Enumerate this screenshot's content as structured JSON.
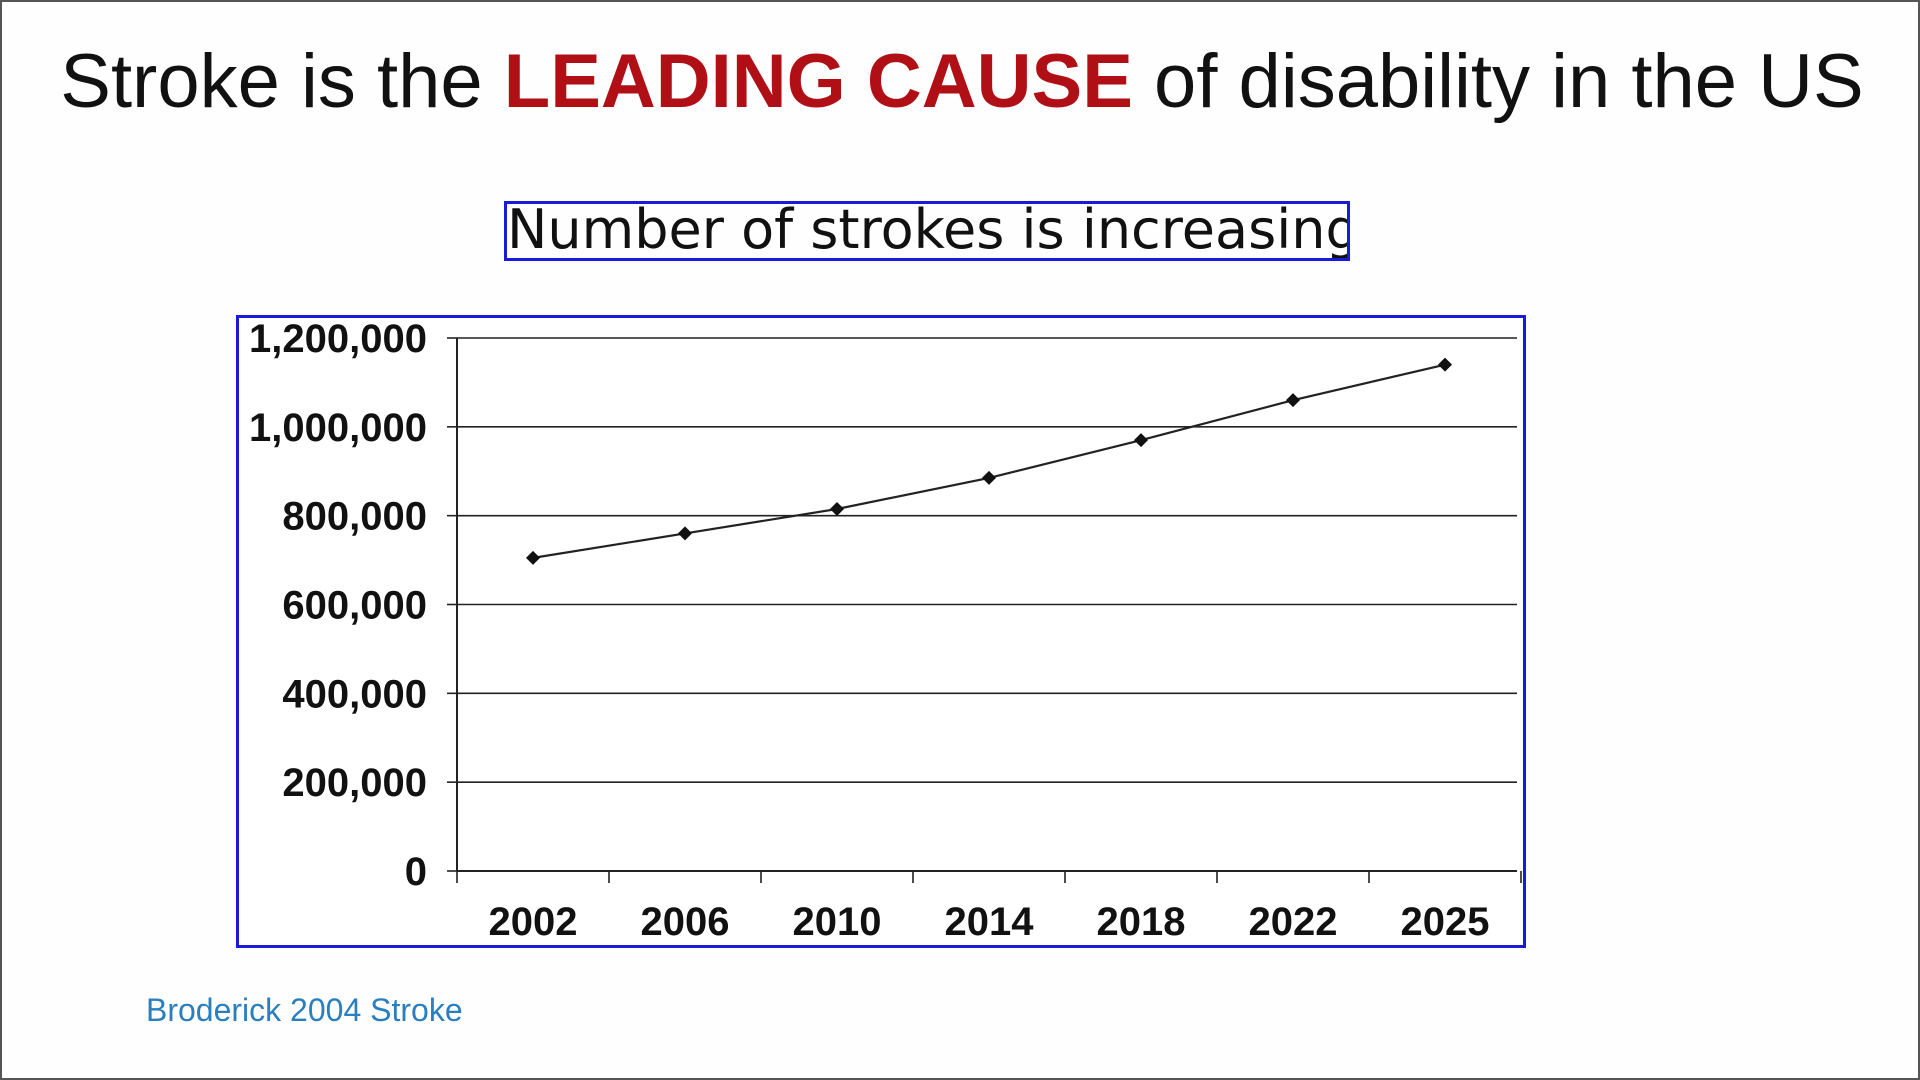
{
  "slide": {
    "title_before": "Stroke is the ",
    "title_highlight": "LEADING CAUSE",
    "title_after": " of disability in the US",
    "subtitle": "Number of strokes is increasing",
    "source": "Broderick 2004 Stroke",
    "colors": {
      "highlight": "#b01015",
      "frame": "#1a1adb",
      "source": "#2a7fc0"
    }
  },
  "chart_data": {
    "type": "line",
    "title": "",
    "xlabel": "",
    "ylabel": "",
    "categories": [
      "2002",
      "2006",
      "2010",
      "2014",
      "2018",
      "2022",
      "2025"
    ],
    "series": [
      {
        "values": [
          705000,
          760000,
          815000,
          885000,
          970000,
          1060000,
          1140000
        ],
        "marker": "diamond"
      }
    ],
    "ylim": [
      0,
      1200000
    ],
    "yticks": [
      "0",
      "200,000",
      "400,000",
      "600,000",
      "800,000",
      "1,000,000",
      "1,200,000"
    ],
    "grid": true
  }
}
